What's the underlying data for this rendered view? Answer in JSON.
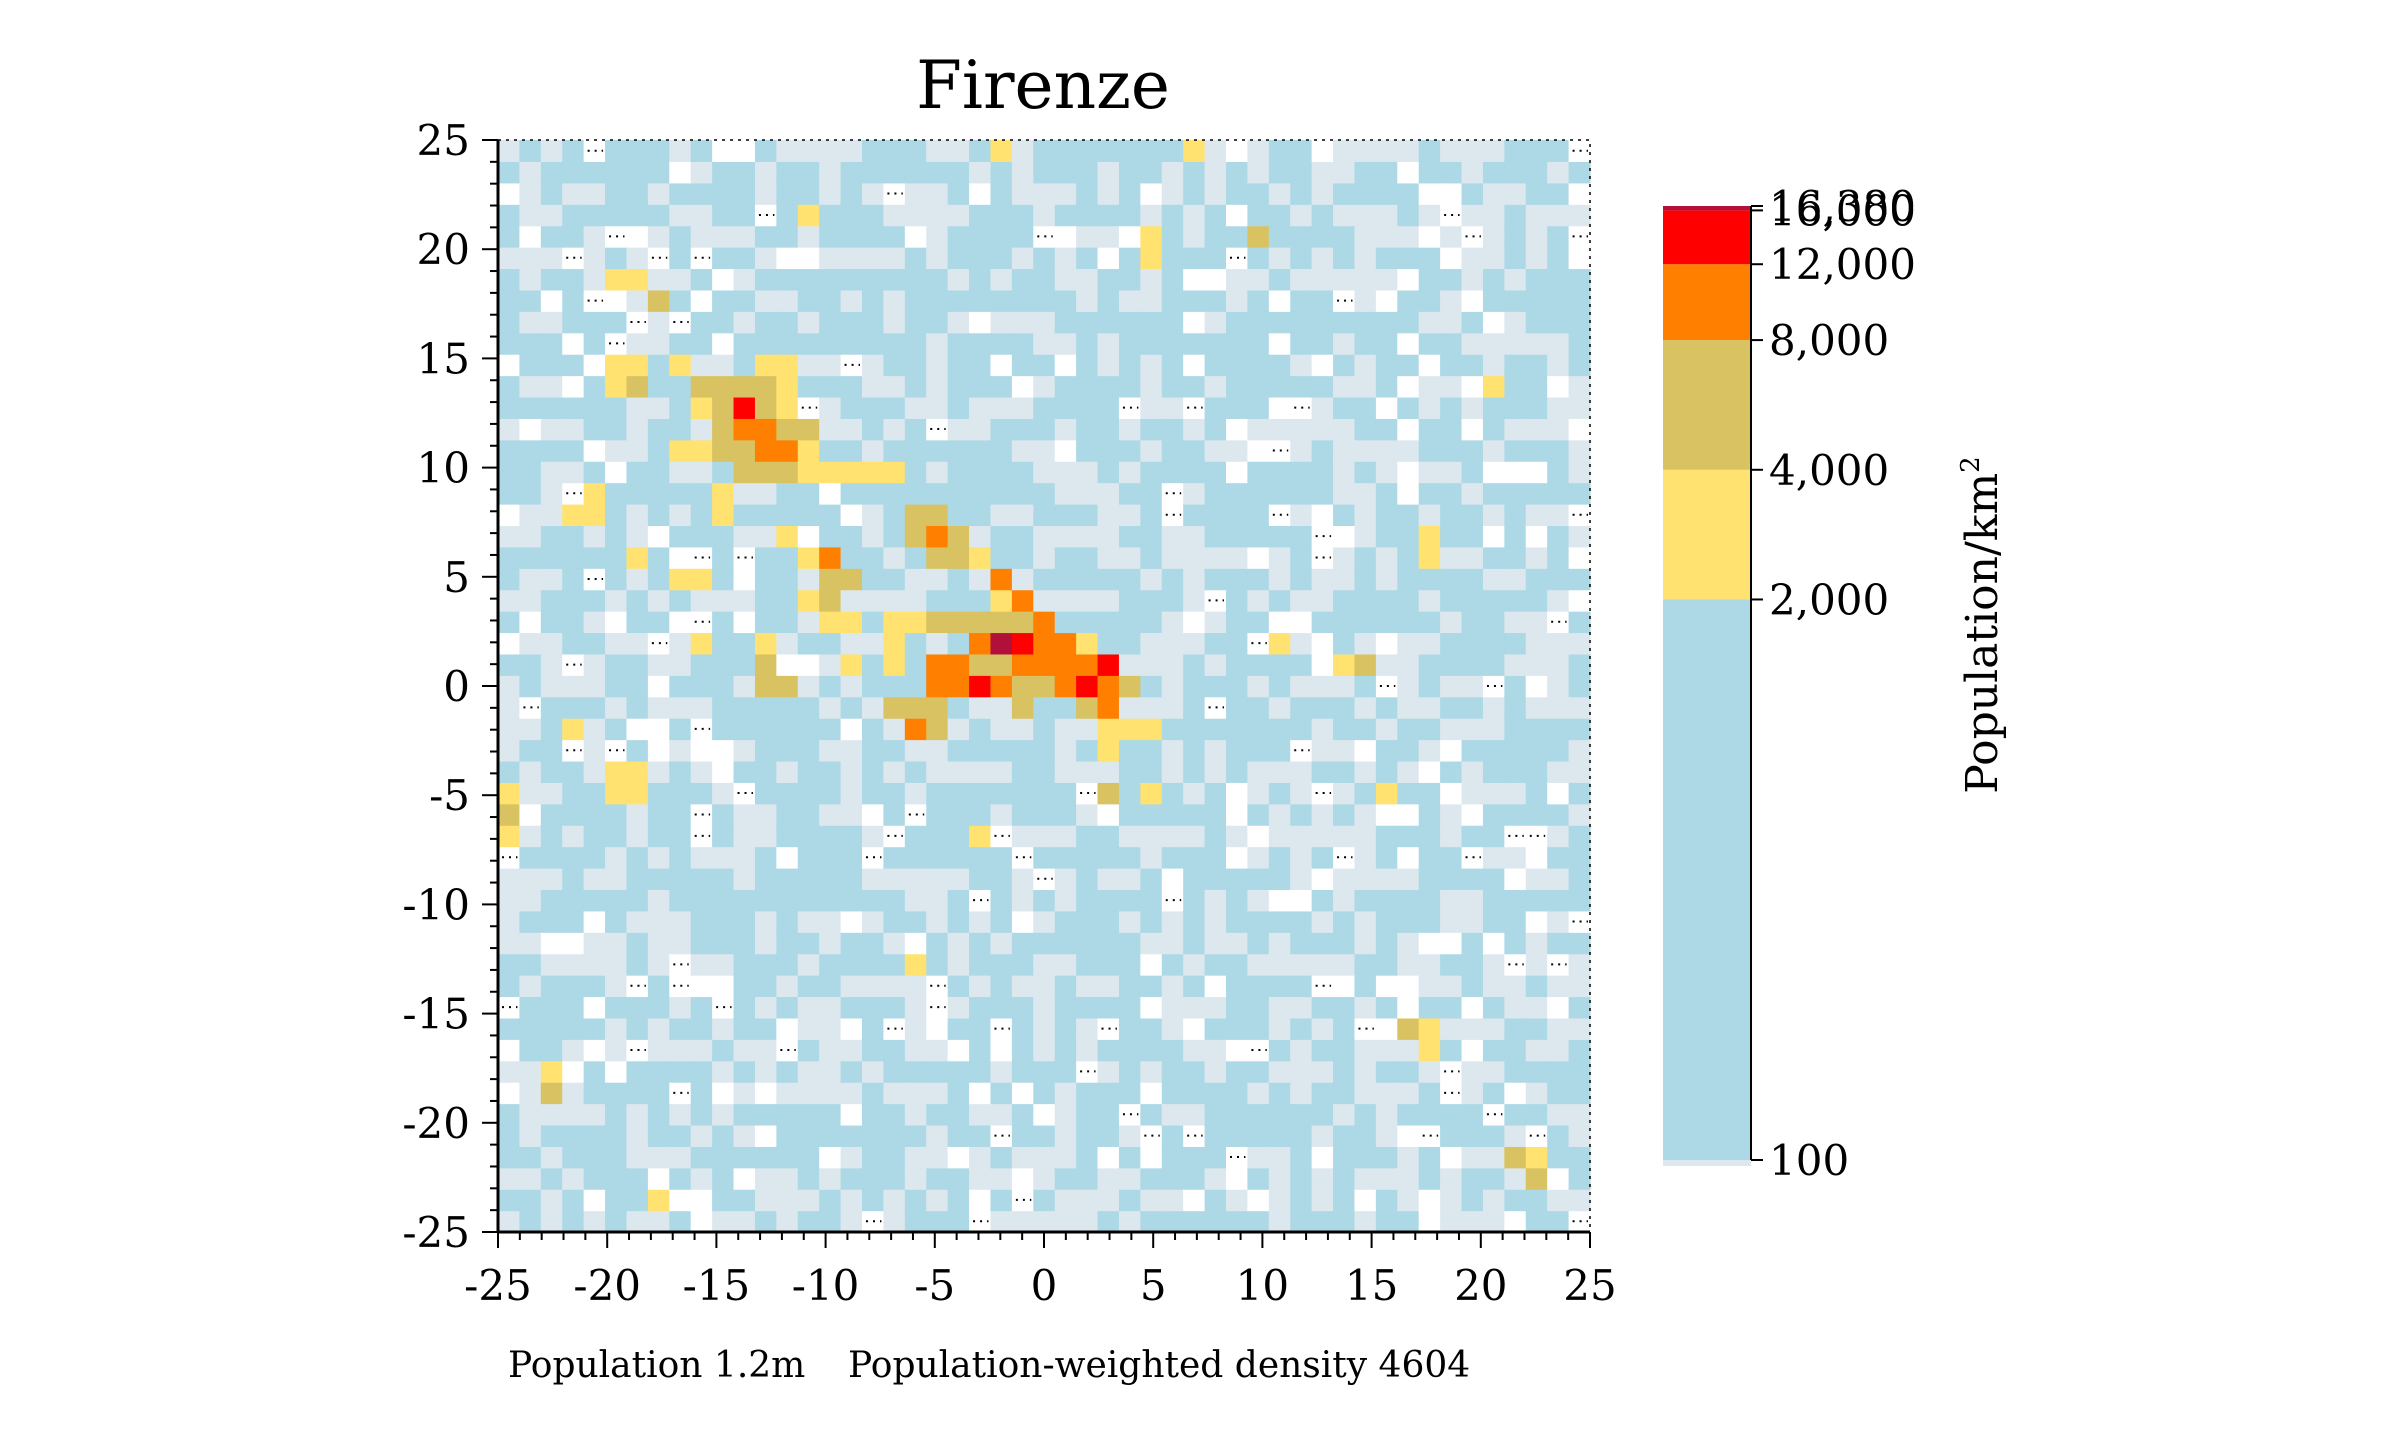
{
  "chart_data": {
    "type": "heatmap",
    "title": "Firenze",
    "xlabel": "",
    "ylabel": "",
    "xlim": [
      -25,
      25
    ],
    "ylim": [
      -25,
      25
    ],
    "x_ticks": [
      -25,
      -20,
      -15,
      -10,
      -5,
      0,
      5,
      10,
      15,
      20,
      25
    ],
    "y_ticks": [
      -25,
      -20,
      -15,
      -10,
      -5,
      0,
      5,
      10,
      15,
      20,
      25
    ],
    "x_tick_labels": [
      "-25",
      "-20",
      "-15",
      "-10",
      "-5",
      "0",
      "5",
      "10",
      "15",
      "20",
      "25"
    ],
    "y_tick_labels": [
      "-25",
      "-20",
      "-15",
      "-10",
      "-5",
      "0",
      "5",
      "10",
      "15",
      "20",
      "25"
    ],
    "grid": false,
    "colorbar": {
      "title": "Population/km",
      "title_superscript": "2",
      "boundaries": [
        100,
        2000,
        4000,
        8000,
        12000,
        16000,
        16380
      ],
      "tick_labels": [
        "100",
        "2,000",
        "4,000",
        "8,000",
        "12,000",
        "16,000",
        "16,380"
      ],
      "colors": [
        "#add8e6",
        "#ffe270",
        "#d8c262",
        "#ff7f00",
        "#ff0000",
        "#b0103a"
      ],
      "below_min_color": "#dde8ee",
      "empty_color": "#ffffff"
    },
    "cells": [
      {
        "x": -14,
        "y": 13,
        "v": 13500
      },
      {
        "x": -13,
        "y": 12,
        "v": 10000
      },
      {
        "x": -13,
        "y": 13,
        "v": 6000
      },
      {
        "x": -12,
        "y": 11,
        "v": 10000
      },
      {
        "x": -13,
        "y": 11,
        "v": 10000
      },
      {
        "x": -14,
        "y": 12,
        "v": 10000
      },
      {
        "x": -15,
        "y": 13,
        "v": 6000
      },
      {
        "x": -14,
        "y": 11,
        "v": 6000
      },
      {
        "x": -15,
        "y": 12,
        "v": 6000
      },
      {
        "x": -16,
        "y": 13,
        "v": 3000
      },
      {
        "x": -15,
        "y": 14,
        "v": 6000
      },
      {
        "x": -16,
        "y": 14,
        "v": 6000
      },
      {
        "x": -14,
        "y": 14,
        "v": 6000
      },
      {
        "x": -13,
        "y": 14,
        "v": 6000
      },
      {
        "x": -12,
        "y": 14,
        "v": 3000
      },
      {
        "x": -12,
        "y": 15,
        "v": 3000
      },
      {
        "x": -13,
        "y": 15,
        "v": 3000
      },
      {
        "x": -12,
        "y": 13,
        "v": 3000
      },
      {
        "x": -12,
        "y": 12,
        "v": 6000
      },
      {
        "x": -11,
        "y": 12,
        "v": 6000
      },
      {
        "x": -15,
        "y": 11,
        "v": 6000
      },
      {
        "x": -16,
        "y": 11,
        "v": 3000
      },
      {
        "x": -17,
        "y": 11,
        "v": 3000
      },
      {
        "x": -14,
        "y": 10,
        "v": 6000
      },
      {
        "x": -13,
        "y": 10,
        "v": 6000
      },
      {
        "x": -12,
        "y": 10,
        "v": 6000
      },
      {
        "x": -11,
        "y": 10,
        "v": 3000
      },
      {
        "x": -10,
        "y": 10,
        "v": 3000
      },
      {
        "x": -9,
        "y": 10,
        "v": 3000
      },
      {
        "x": -8,
        "y": 10,
        "v": 3000
      },
      {
        "x": -7,
        "y": 10,
        "v": 3000
      },
      {
        "x": -11,
        "y": 11,
        "v": 3000
      },
      {
        "x": -19,
        "y": 15,
        "v": 3000
      },
      {
        "x": -20,
        "y": 15,
        "v": 3000
      },
      {
        "x": -20,
        "y": 14,
        "v": 3000
      },
      {
        "x": -19,
        "y": 14,
        "v": 6000
      },
      {
        "x": -17,
        "y": 15,
        "v": 3000
      },
      {
        "x": -20,
        "y": 19,
        "v": 3000
      },
      {
        "x": -19,
        "y": 19,
        "v": 3000
      },
      {
        "x": -18,
        "y": 18,
        "v": 6000
      },
      {
        "x": -11,
        "y": 22,
        "v": 3000
      },
      {
        "x": -21,
        "y": 8,
        "v": 3000
      },
      {
        "x": -22,
        "y": 8,
        "v": 3000
      },
      {
        "x": -21,
        "y": 9,
        "v": 3000
      },
      {
        "x": -15,
        "y": 9,
        "v": 3000
      },
      {
        "x": -15,
        "y": 8,
        "v": 3000
      },
      {
        "x": -19,
        "y": 6,
        "v": 3000
      },
      {
        "x": -17,
        "y": 5,
        "v": 3000
      },
      {
        "x": -16,
        "y": 5,
        "v": 3000
      },
      {
        "x": -6,
        "y": 8,
        "v": 6000
      },
      {
        "x": -5,
        "y": 8,
        "v": 6000
      },
      {
        "x": -5,
        "y": 7,
        "v": 10000
      },
      {
        "x": -6,
        "y": 7,
        "v": 6000
      },
      {
        "x": -4,
        "y": 7,
        "v": 6000
      },
      {
        "x": -4,
        "y": 6,
        "v": 6000
      },
      {
        "x": -5,
        "y": 6,
        "v": 6000
      },
      {
        "x": -3,
        "y": 6,
        "v": 3000
      },
      {
        "x": -12,
        "y": 7,
        "v": 3000
      },
      {
        "x": -10,
        "y": 6,
        "v": 10000
      },
      {
        "x": -11,
        "y": 6,
        "v": 3000
      },
      {
        "x": -10,
        "y": 5,
        "v": 6000
      },
      {
        "x": -9,
        "y": 5,
        "v": 6000
      },
      {
        "x": -10,
        "y": 4,
        "v": 6000
      },
      {
        "x": -11,
        "y": 4,
        "v": 3000
      },
      {
        "x": -10,
        "y": 3,
        "v": 3000
      },
      {
        "x": -9,
        "y": 3,
        "v": 3000
      },
      {
        "x": -13,
        "y": 2,
        "v": 3000
      },
      {
        "x": -13,
        "y": 1,
        "v": 6000
      },
      {
        "x": -13,
        "y": 0,
        "v": 6000
      },
      {
        "x": -12,
        "y": 0,
        "v": 6000
      },
      {
        "x": -16,
        "y": 2,
        "v": 3000
      },
      {
        "x": -9,
        "y": 1,
        "v": 3000
      },
      {
        "x": -2,
        "y": 5,
        "v": 10000
      },
      {
        "x": -1,
        "y": 4,
        "v": 10000
      },
      {
        "x": -2,
        "y": 4,
        "v": 3000
      },
      {
        "x": -1,
        "y": 3,
        "v": 6000
      },
      {
        "x": -2,
        "y": 3,
        "v": 6000
      },
      {
        "x": -3,
        "y": 3,
        "v": 6000
      },
      {
        "x": -4,
        "y": 3,
        "v": 6000
      },
      {
        "x": -5,
        "y": 3,
        "v": 6000
      },
      {
        "x": -6,
        "y": 3,
        "v": 3000
      },
      {
        "x": -7,
        "y": 3,
        "v": 3000
      },
      {
        "x": -7,
        "y": 2,
        "v": 3000
      },
      {
        "x": -7,
        "y": 1,
        "v": 3000
      },
      {
        "x": -3,
        "y": 2,
        "v": 10000
      },
      {
        "x": -2,
        "y": 2,
        "v": 16200
      },
      {
        "x": -1,
        "y": 2,
        "v": 13500
      },
      {
        "x": 0,
        "y": 2,
        "v": 10000
      },
      {
        "x": 1,
        "y": 2,
        "v": 10000
      },
      {
        "x": 2,
        "y": 2,
        "v": 3000
      },
      {
        "x": 0,
        "y": 3,
        "v": 10000
      },
      {
        "x": -5,
        "y": 1,
        "v": 10000
      },
      {
        "x": -4,
        "y": 1,
        "v": 10000
      },
      {
        "x": -3,
        "y": 1,
        "v": 6000
      },
      {
        "x": -2,
        "y": 1,
        "v": 6000
      },
      {
        "x": -1,
        "y": 1,
        "v": 10000
      },
      {
        "x": 0,
        "y": 1,
        "v": 10000
      },
      {
        "x": 1,
        "y": 1,
        "v": 10000
      },
      {
        "x": 2,
        "y": 1,
        "v": 10000
      },
      {
        "x": 3,
        "y": 1,
        "v": 13500
      },
      {
        "x": -4,
        "y": 0,
        "v": 10000
      },
      {
        "x": -3,
        "y": 0,
        "v": 13500
      },
      {
        "x": -2,
        "y": 0,
        "v": 10000
      },
      {
        "x": -1,
        "y": 0,
        "v": 6000
      },
      {
        "x": 0,
        "y": 0,
        "v": 6000
      },
      {
        "x": 1,
        "y": 0,
        "v": 10000
      },
      {
        "x": 2,
        "y": 0,
        "v": 13500
      },
      {
        "x": 3,
        "y": 0,
        "v": 10000
      },
      {
        "x": 4,
        "y": 0,
        "v": 6000
      },
      {
        "x": -5,
        "y": 0,
        "v": 10000
      },
      {
        "x": -5,
        "y": -1,
        "v": 6000
      },
      {
        "x": -6,
        "y": -1,
        "v": 6000
      },
      {
        "x": -7,
        "y": -1,
        "v": 6000
      },
      {
        "x": -6,
        "y": -2,
        "v": 10000
      },
      {
        "x": -5,
        "y": -2,
        "v": 6000
      },
      {
        "x": -1,
        "y": -1,
        "v": 6000
      },
      {
        "x": 2,
        "y": -1,
        "v": 6000
      },
      {
        "x": 3,
        "y": -1,
        "v": 10000
      },
      {
        "x": 3,
        "y": -2,
        "v": 3000
      },
      {
        "x": 4,
        "y": -2,
        "v": 3000
      },
      {
        "x": 5,
        "y": -2,
        "v": 3000
      },
      {
        "x": 3,
        "y": -3,
        "v": 3000
      },
      {
        "x": 3,
        "y": -5,
        "v": 6000
      },
      {
        "x": 5,
        "y": -5,
        "v": 3000
      },
      {
        "x": -3,
        "y": -7,
        "v": 3000
      },
      {
        "x": -6,
        "y": -13,
        "v": 3000
      },
      {
        "x": 5,
        "y": 21,
        "v": 3000
      },
      {
        "x": 5,
        "y": 20,
        "v": 3000
      },
      {
        "x": 10,
        "y": 21,
        "v": 6000
      },
      {
        "x": -2,
        "y": 25,
        "v": 3000
      },
      {
        "x": 7,
        "y": 25,
        "v": 3000
      },
      {
        "x": 18,
        "y": 7,
        "v": 3000
      },
      {
        "x": 18,
        "y": 6,
        "v": 3000
      },
      {
        "x": 11,
        "y": 2,
        "v": 3000
      },
      {
        "x": 14,
        "y": 1,
        "v": 3000
      },
      {
        "x": 15,
        "y": 1,
        "v": 6000
      },
      {
        "x": 16,
        "y": -5,
        "v": 3000
      },
      {
        "x": 21,
        "y": 14,
        "v": 3000
      },
      {
        "x": -22,
        "y": -2,
        "v": 3000
      },
      {
        "x": -20,
        "y": -4,
        "v": 3000
      },
      {
        "x": -19,
        "y": -4,
        "v": 3000
      },
      {
        "x": -20,
        "y": -5,
        "v": 3000
      },
      {
        "x": -19,
        "y": -5,
        "v": 3000
      },
      {
        "x": -25,
        "y": -5,
        "v": 3000
      },
      {
        "x": -25,
        "y": -6,
        "v": 6000
      },
      {
        "x": -25,
        "y": -7,
        "v": 3000
      },
      {
        "x": -23,
        "y": -18,
        "v": 3000
      },
      {
        "x": -23,
        "y": -19,
        "v": 6000
      },
      {
        "x": -18,
        "y": -24,
        "v": 3000
      },
      {
        "x": 17,
        "y": -16,
        "v": 6000
      },
      {
        "x": 18,
        "y": -16,
        "v": 3000
      },
      {
        "x": 18,
        "y": -17,
        "v": 3000
      },
      {
        "x": 22,
        "y": -22,
        "v": 6000
      },
      {
        "x": 23,
        "y": -22,
        "v": 3000
      },
      {
        "x": 23,
        "y": -23,
        "v": 6000
      }
    ]
  },
  "footer": {
    "population": "Population 1.2m",
    "weighted_density": "Population-weighted density 4604"
  }
}
